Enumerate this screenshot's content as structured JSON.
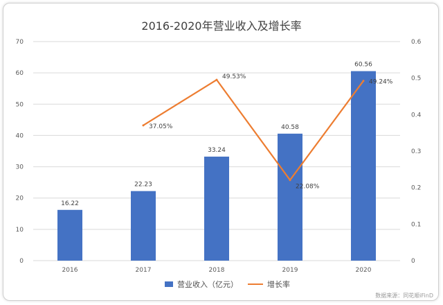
{
  "chart_data": {
    "type": "bar",
    "title": "2016-2020年营业收入及增长率",
    "categories": [
      "2016",
      "2017",
      "2018",
      "2019",
      "2020"
    ],
    "series": [
      {
        "name": "营业收入（亿元）",
        "type": "bar",
        "axis": "left",
        "values": [
          16.22,
          22.23,
          33.24,
          40.58,
          60.56
        ],
        "labels": [
          "16.22",
          "22.23",
          "33.24",
          "40.58",
          "60.56"
        ],
        "color": "#4472C4"
      },
      {
        "name": "增长率",
        "type": "line",
        "axis": "right",
        "values": [
          null,
          0.3705,
          0.4953,
          0.2208,
          0.4924
        ],
        "labels": [
          "",
          "37.05%",
          "49.53%",
          "22.08%",
          "49.24%"
        ],
        "color": "#ED7D31"
      }
    ],
    "y_left": {
      "min": 0,
      "max": 70,
      "ticks": [
        "0",
        "10",
        "20",
        "30",
        "40",
        "50",
        "60",
        "70"
      ]
    },
    "y_right": {
      "min": 0,
      "max": 0.6,
      "ticks": [
        "0",
        "0.1",
        "0.2",
        "0.3",
        "0.4",
        "0.5",
        "0.6"
      ]
    },
    "grid": true,
    "legend": "bottom"
  },
  "source": "数据来源：同花顺iFinD"
}
